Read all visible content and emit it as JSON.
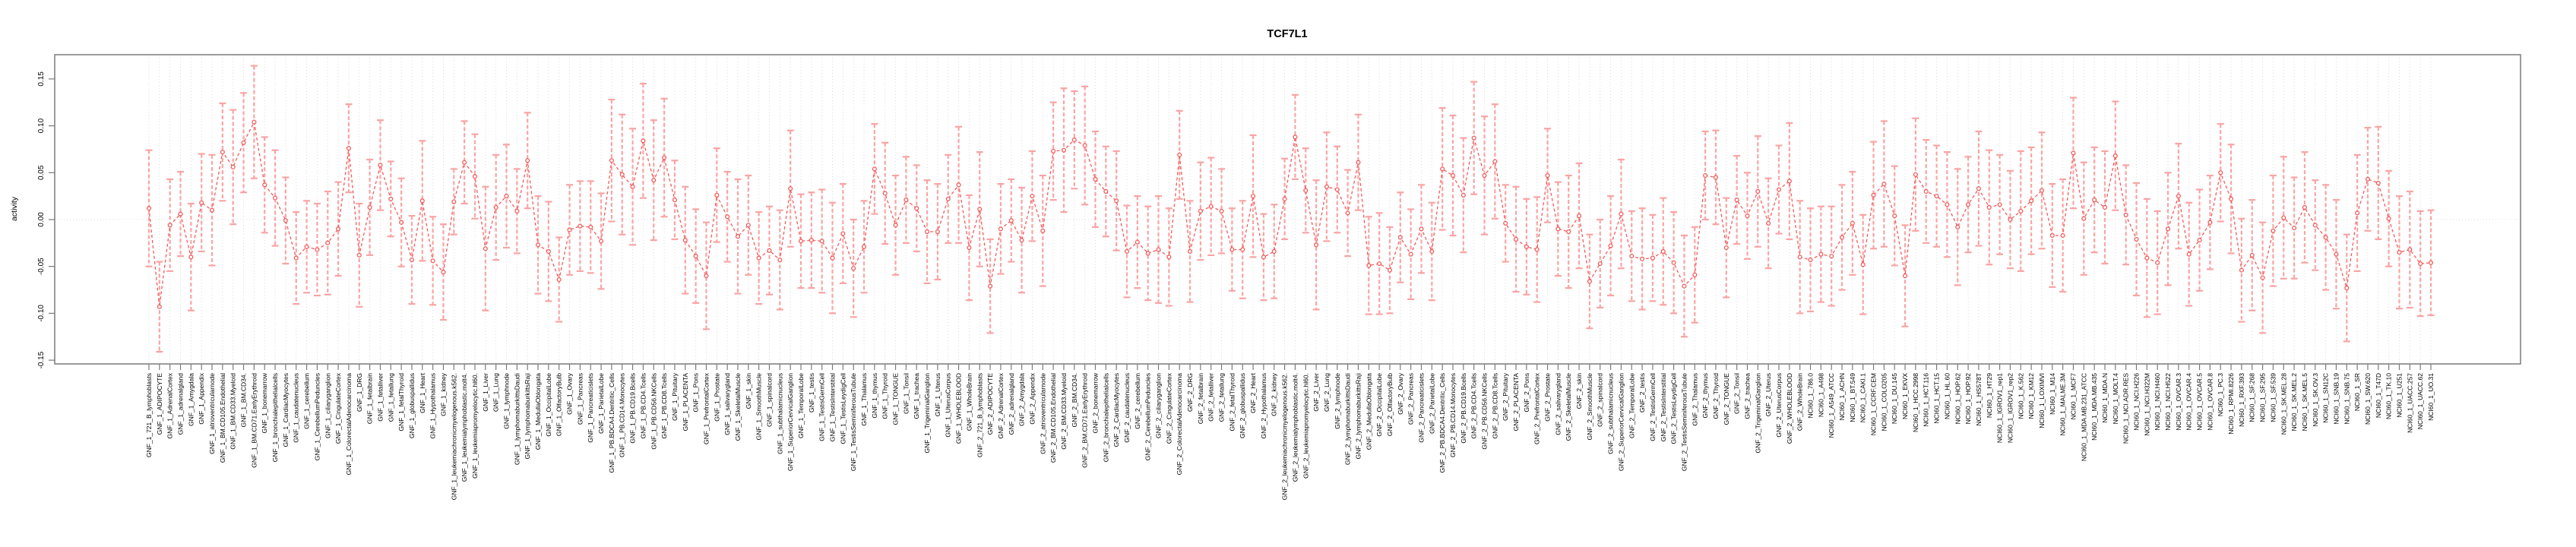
{
  "figure": {
    "title": "TCF7L1",
    "ylabel": "activity",
    "background": "#ffffff",
    "colors": {
      "point_line": "#f25c5c",
      "errorbar": "#f9a4a4",
      "grid": "#dcdcdc",
      "axis_box": "#7a7a7a",
      "text": "#000000"
    }
  },
  "chart_data": {
    "type": "line",
    "title": "TCF7L1",
    "xlabel": "",
    "ylabel": "activity",
    "ylim": [
      -0.153,
      0.175
    ],
    "yticks": [
      -0.15,
      -0.1,
      -0.05,
      0.0,
      0.05,
      0.1,
      0.15
    ],
    "ytick_labels": [
      "-0.15",
      "-0.10",
      "-0.05",
      "0.00",
      "0.05",
      "0.10",
      "0.15"
    ],
    "grid": "dotted vertical line at every category; dotted horizontal line at 0",
    "legend_position": "none",
    "marker": "open-circle",
    "line_style": "dashed",
    "errorbars": "symmetric, pink with end caps",
    "categories": [
      "GNF_1_721_B_lymphoblasts",
      "GNF_1_ADIPOCYTE",
      "GNF_1_AdrenalCortex",
      "GNF_1_adrenalgland",
      "GNF_1_Amygdala",
      "GNF_1_Appendix",
      "GNF_1_atrioventricularnode",
      "GNF_1_BM.CD105.Endothelial",
      "GNF_1_BM.CD33.Myeloid",
      "GNF_1_BM.CD34.",
      "GNF_1_BM.CD71.EarlyErythroid",
      "GNF_1_bonemarrow",
      "GNF_1_bronchialepithelialcells",
      "GNF_1_CardiacMyocytes",
      "GNF_1_caudatenucleus",
      "GNF_1_cerebellum",
      "GNF_1_CerebellumPeduncles",
      "GNF_1_ciliaryganglion",
      "GNF_1_CingulateCortex",
      "GNF_1_ColorectalAdenocarcinoma",
      "GNF_1_DRG",
      "GNF_1_fetalbrain",
      "GNF_1_fetalliver",
      "GNF_1_fetallung",
      "GNF_1_fetalThyroid",
      "GNF_1_globuspallidus",
      "GNF_1_Heart",
      "GNF_1_Hypothalamus",
      "GNF_1_kidney",
      "GNF_1_leukemiachronicmyelogenous.k562.",
      "GNF_1_leukemialymphoblastic.molt4.",
      "GNF_1_leukemiapromyelocytic.hl60.",
      "GNF_1_Liver",
      "GNF_1_Lung",
      "GNF_1_lymphnode",
      "GNF_1_lymphomaburkittsDaudi",
      "GNF_1_lymphomaburkittsRaji",
      "GNF_1_MedullaOblongata",
      "GNF_1_OccipitalLobe",
      "GNF_1_OlfactoryBulb",
      "GNF_1_Ovary",
      "GNF_1_Pancreas",
      "GNF_1_Pancreaticislets",
      "GNF_1_ParietalLobe",
      "GNF_1_PB.BDCA4.Dentritic_Cells",
      "GNF_1_PB.CD14.Monocytes",
      "GNF_1_PB.CD19.Bcells",
      "GNF_1_PB.CD4.Tcells",
      "GNF_1_PB.CD56.NKCells",
      "GNF_1_PB.CD8.Tcells",
      "GNF_1_Pituitary",
      "GNF_1_PLACENTA",
      "GNF_1_Pons",
      "GNF_1_PrefrontalCortex",
      "GNF_1_Prostate",
      "GNF_1_salivarygland",
      "GNF_1_SkeletalMuscle",
      "GNF_1_skin",
      "GNF_1_SmoothMuscle",
      "GNF_1_spinalcord",
      "GNF_1_subthalamicnucleus",
      "GNF_1_SuperiorCervicalGanglion",
      "GNF_1_TemporalLobe",
      "GNF_1_testis",
      "GNF_1_TestisGermCell",
      "GNF_1_TestisInterstitial",
      "GNF_1_TestisLeydigCell",
      "GNF_1_TestisSeminiferousTubule",
      "GNF_1_Thalamus",
      "GNF_1_thymus",
      "GNF_1_Thyroid",
      "GNF_1_TONGUE",
      "GNF_1_Tonsil",
      "GNF_1_trachea",
      "GNF_1_TrigeminalGanglion",
      "GNF_1_Uterus",
      "GNF_1_UterusCorpus",
      "GNF_1_WHOLEBLOOD",
      "GNF_1_WholeBrain",
      "GNF_2_721_B_lymphoblasts",
      "GNF_2_ADIPOCYTE",
      "GNF_2_AdrenalCortex",
      "GNF_2_adrenalgland",
      "GNF_2_Amygdala",
      "GNF_2_Appendix",
      "GNF_2_atrioventricularnode",
      "GNF_2_BM.CD105.Endothelial",
      "GNF_2_BM.CD33.Myeloid",
      "GNF_2_BM.CD34.",
      "GNF_2_BM.CD71.EarlyErythroid",
      "GNF_2_bonemarrow",
      "GNF_2_bronchialepithelialcells",
      "GNF_2_CardiacMyocytes",
      "GNF_2_caudatenucleus",
      "GNF_2_cerebellum",
      "GNF_2_CerebellumPeduncles",
      "GNF_2_ciliaryganglion",
      "GNF_2_CingulateCortex",
      "GNF_2_ColorectalAdenocarcinoma",
      "GNF_2_DRG",
      "GNF_2_fetalbrain",
      "GNF_2_fetalliver",
      "GNF_2_fetallung",
      "GNF_2_fetalThyroid",
      "GNF_2_globuspallidus",
      "GNF_2_Heart",
      "GNF_2_Hypothalamus",
      "GNF_2_kidney",
      "GNF_2_leukemiachronicmyelogenous.k562.",
      "GNF_2_leukemialymphoblastic.molt4.",
      "GNF_2_leukemiapromyelocytic.hl60.",
      "GNF_2_Liver",
      "GNF_2_Lung",
      "GNF_2_lymphnode",
      "GNF_2_lymphomaburkittsDaudi",
      "GNF_2_lymphomaburkittsRaji",
      "GNF_2_MedullaOblongata",
      "GNF_2_OccipitalLobe",
      "GNF_2_OlfactoryBulb",
      "GNF_2_Ovary",
      "GNF_2_Pancreas",
      "GNF_2_Pancreaticislets",
      "GNF_2_ParietalLobe",
      "GNF_2_PB.BDCA4.Dentritic_Cells",
      "GNF_2_PB.CD14.Monocytes",
      "GNF_2_PB.CD19.Bcells",
      "GNF_2_PB.CD4.Tcells",
      "GNF_2_PB.CD56.NKCells",
      "GNF_2_PB.CD8.Tcells",
      "GNF_2_Pituitary",
      "GNF_2_PLACENTA",
      "GNF_2_Pons",
      "GNF_2_PrefrontalCortex",
      "GNF_2_Prostate",
      "GNF_2_salivarygland",
      "GNF_2_SkeletalMuscle",
      "GNF_2_skin",
      "GNF_2_SmoothMuscle",
      "GNF_2_spinalcord",
      "GNF_2_subthalamicnucleus",
      "GNF_2_SuperiorCervicalGanglion",
      "GNF_2_TemporalLobe",
      "GNF_2_testis",
      "GNF_2_TestisGermCell",
      "GNF_2_TestisInterstitial",
      "GNF_2_TestisLeydigCell",
      "GNF_2_TestisSeminiferousTubule",
      "GNF_2_Thalamus",
      "GNF_2_thymus",
      "GNF_2_Thyroid",
      "GNF_2_TONGUE",
      "GNF_2_Tonsil",
      "GNF_2_trachea",
      "GNF_2_TrigeminalGanglion",
      "GNF_2_Uterus",
      "GNF_2_UterusCorpus",
      "GNF_2_WHOLEBLOOD",
      "GNF_2_WholeBrain",
      "NCI60_1_786.0",
      "NCI60_1_A498",
      "NCI60_1_A549_ATCC",
      "NCI60_1_ACHN",
      "NCI60_1_BT.549",
      "NCI60_1_CAKI.1",
      "NCI60_1_CCRF.CEM",
      "NCI60_1_COLO205",
      "NCI60_1_DU.145",
      "NCI60_1_EKVX",
      "NCI60_1_HCC.2998",
      "NCI60_1_HCT.116",
      "NCI60_1_HCT.15",
      "NCI60_1_HL.60",
      "NCI60_1_HOP.62",
      "NCI60_1_HOP.92",
      "NCI60_1_HS578T",
      "NCI60_1_HT29",
      "NCI60_1_IGROV1_rep1",
      "NCI60_1_IGROV1_rep2",
      "NCI60_1_K.562",
      "NCI60_1_KM12",
      "NCI60_1_LOXIMVI",
      "NCI60_1_M14",
      "NCI60_1_MALME.3M",
      "NCI60_1_MCF7",
      "NCI60_1_MDA.MB.231_ATCC",
      "NCI60_1_MDA.MB.435",
      "NCI60_1_MDA.N",
      "NCI60_1_MOLT.4",
      "NCI60_1_NCI.ADR.RES",
      "NCI60_1_NCI.H226",
      "NCI60_1_NCI.H322M",
      "NCI60_1_NCI.H460",
      "NCI60_1_NCI.H522",
      "NCI60_1_OVCAR.3",
      "NCI60_1_OVCAR.4",
      "NCI60_1_OVCAR.5",
      "NCI60_1_OVCAR.8",
      "NCI60_1_PC.3",
      "NCI60_1_RPMI.8226",
      "NCI60_1_RXF.393",
      "NCI60_1_SF.268",
      "NCI60_1_SF.295",
      "NCI60_1_SF.539",
      "NCI60_1_SK.MEL.28",
      "NCI60_1_SK.MEL.2",
      "NCI60_1_SK.MEL.5",
      "NCI60_1_SK.OV.3",
      "NCI60_1_SN12C",
      "NCI60_1_SNB.19",
      "NCI60_1_SNB.75",
      "NCI60_1_SR",
      "NCI60_1_SW.620",
      "NCI60_1_T47D",
      "NCI60_1_TK.10",
      "NCI60_1_U251",
      "NCI60_1_UACC.257",
      "NCI60_1_UACC.62",
      "NCI60_1_UO.31"
    ],
    "series": [
      {
        "name": "activity",
        "values": [
          0.012,
          -0.093,
          -0.006,
          0.006,
          -0.04,
          0.018,
          0.01,
          0.072,
          0.056,
          0.082,
          0.104,
          0.037,
          0.023,
          -0.001,
          -0.041,
          -0.029,
          -0.032,
          -0.025,
          -0.01,
          0.076,
          -0.038,
          0.013,
          0.058,
          0.022,
          -0.003,
          -0.043,
          0.02,
          -0.044,
          -0.056,
          0.019,
          0.061,
          0.046,
          -0.031,
          0.013,
          0.025,
          0.009,
          0.063,
          -0.027,
          -0.034,
          -0.064,
          -0.011,
          -0.007,
          -0.008,
          -0.023,
          0.063,
          0.048,
          0.035,
          0.084,
          0.042,
          0.066,
          0.021,
          -0.022,
          -0.039,
          -0.06,
          0.026,
          0.003,
          -0.018,
          -0.006,
          -0.041,
          -0.033,
          -0.043,
          0.033,
          -0.023,
          -0.022,
          -0.023,
          -0.041,
          -0.015,
          -0.052,
          -0.029,
          0.054,
          0.028,
          -0.006,
          0.021,
          0.012,
          -0.013,
          -0.013,
          0.022,
          0.037,
          -0.03,
          0.011,
          -0.071,
          -0.01,
          -0.001,
          -0.022,
          0.025,
          -0.012,
          0.073,
          0.074,
          0.085,
          0.079,
          0.043,
          0.03,
          0.02,
          -0.034,
          -0.024,
          -0.036,
          -0.032,
          -0.04,
          0.069,
          -0.034,
          0.009,
          0.014,
          0.009,
          -0.032,
          -0.032,
          0.025,
          -0.04,
          -0.034,
          0.022,
          0.088,
          0.031,
          -0.027,
          0.035,
          0.032,
          0.007,
          0.061,
          -0.049,
          -0.047,
          -0.054,
          -0.019,
          -0.037,
          -0.01,
          -0.034,
          0.054,
          0.047,
          0.026,
          0.087,
          0.047,
          0.062,
          -0.004,
          -0.021,
          -0.029,
          -0.032,
          0.047,
          -0.01,
          -0.013,
          0.004,
          -0.066,
          -0.047,
          -0.028,
          0.006,
          -0.039,
          -0.042,
          -0.041,
          -0.034,
          -0.046,
          -0.071,
          -0.059,
          0.047,
          0.045,
          -0.03,
          0.021,
          0.004,
          0.03,
          -0.004,
          0.032,
          0.041,
          -0.04,
          -0.043,
          -0.037,
          -0.039,
          -0.019,
          -0.004,
          -0.048,
          0.026,
          0.038,
          0.004,
          -0.06,
          0.048,
          0.03,
          0.025,
          0.016,
          -0.008,
          0.016,
          0.033,
          0.013,
          0.016,
          0.0,
          0.009,
          0.02,
          0.031,
          -0.017,
          -0.017,
          0.071,
          0.001,
          0.021,
          0.013,
          0.068,
          0.005,
          -0.021,
          -0.041,
          -0.046,
          -0.01,
          0.025,
          -0.037,
          -0.022,
          -0.003,
          0.05,
          0.022,
          -0.054,
          -0.038,
          -0.062,
          -0.012,
          0.002,
          -0.009,
          0.013,
          -0.006,
          -0.019,
          -0.037,
          -0.073,
          0.007,
          0.043,
          0.039,
          0.001,
          -0.035,
          -0.032,
          -0.047,
          -0.046
        ],
        "errors": [
          0.062,
          0.048,
          0.049,
          0.045,
          0.057,
          0.052,
          0.059,
          0.052,
          0.061,
          0.053,
          0.06,
          0.051,
          0.051,
          0.046,
          0.049,
          0.049,
          0.049,
          0.055,
          0.05,
          0.047,
          0.055,
          0.051,
          0.048,
          0.04,
          0.047,
          0.047,
          0.064,
          0.047,
          0.051,
          0.035,
          0.044,
          0.045,
          0.066,
          0.056,
          0.055,
          0.045,
          0.051,
          0.052,
          0.053,
          0.045,
          0.048,
          0.048,
          0.049,
          0.051,
          0.065,
          0.064,
          0.062,
          0.061,
          0.064,
          0.063,
          0.042,
          0.057,
          0.05,
          0.057,
          0.05,
          0.048,
          0.061,
          0.053,
          0.049,
          0.047,
          0.053,
          0.062,
          0.05,
          0.051,
          0.055,
          0.059,
          0.053,
          0.052,
          0.049,
          0.048,
          0.054,
          0.053,
          0.046,
          0.046,
          0.055,
          0.051,
          0.047,
          0.062,
          0.056,
          0.061,
          0.05,
          0.048,
          0.044,
          0.056,
          0.048,
          0.059,
          0.052,
          0.066,
          0.052,
          0.063,
          0.051,
          0.048,
          0.053,
          0.049,
          0.049,
          0.05,
          0.057,
          0.052,
          0.047,
          0.054,
          0.052,
          0.052,
          0.045,
          0.044,
          0.052,
          0.065,
          0.046,
          0.05,
          0.043,
          0.045,
          0.045,
          0.069,
          0.058,
          0.046,
          0.046,
          0.051,
          0.052,
          0.054,
          0.046,
          0.048,
          0.048,
          0.047,
          0.052,
          0.065,
          0.064,
          0.061,
          0.06,
          0.063,
          0.061,
          0.041,
          0.056,
          0.051,
          0.056,
          0.05,
          0.05,
          0.06,
          0.056,
          0.05,
          0.047,
          0.053,
          0.058,
          0.048,
          0.054,
          0.046,
          0.057,
          0.054,
          0.054,
          0.051,
          0.047,
          0.05,
          0.053,
          0.047,
          0.046,
          0.059,
          0.048,
          0.047,
          0.062,
          0.06,
          0.055,
          0.051,
          0.053,
          0.056,
          0.055,
          0.053,
          0.057,
          0.067,
          0.053,
          0.054,
          0.06,
          0.055,
          0.054,
          0.056,
          0.062,
          0.051,
          0.061,
          0.061,
          0.053,
          0.052,
          0.064,
          0.057,
          0.062,
          0.055,
          0.06,
          0.059,
          0.06,
          0.056,
          0.06,
          0.058,
          0.053,
          0.06,
          0.063,
          0.055,
          0.06,
          0.056,
          0.055,
          0.054,
          0.05,
          0.052,
          0.058,
          0.055,
          0.059,
          0.059,
          0.059,
          0.065,
          0.054,
          0.059,
          0.048,
          0.056,
          0.058,
          0.057,
          0.062,
          0.055,
          0.06,
          0.051,
          0.06,
          0.062,
          0.056,
          0.056
        ]
      }
    ]
  }
}
